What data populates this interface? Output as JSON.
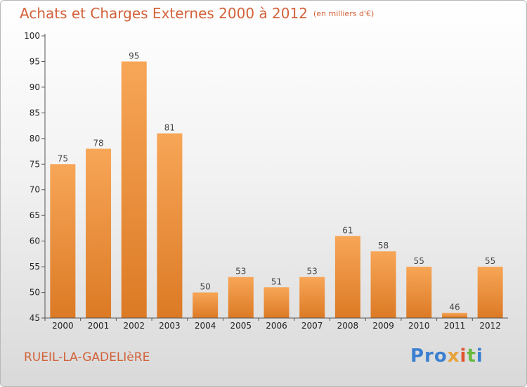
{
  "header": {
    "title": "Achats et Charges Externes 2000 à 2012",
    "unit": "(en milliers d'€)"
  },
  "footer": {
    "commune": "RUEIL-LA-GADELIèRE",
    "logo": [
      "Pro",
      "x",
      "i",
      "t",
      "i"
    ]
  },
  "colors": {
    "accent_text": "#d2623a",
    "bar_top": "#f7a657",
    "bar_bottom": "#dc7a25"
  },
  "chart_data": {
    "type": "bar",
    "title": "Achats et Charges Externes 2000 à 2012",
    "subtitle": "(en milliers d'€)",
    "xlabel": "",
    "ylabel": "",
    "categories": [
      "2000",
      "2001",
      "2002",
      "2003",
      "2004",
      "2005",
      "2006",
      "2007",
      "2008",
      "2009",
      "2010",
      "2011",
      "2012"
    ],
    "values": [
      75,
      78,
      95,
      81,
      50,
      53,
      51,
      53,
      61,
      58,
      55,
      46,
      55
    ],
    "ylim": [
      45,
      100
    ],
    "yticks": [
      45,
      50,
      55,
      60,
      65,
      70,
      75,
      80,
      85,
      90,
      95,
      100
    ],
    "grid": false,
    "data_labels": true
  }
}
